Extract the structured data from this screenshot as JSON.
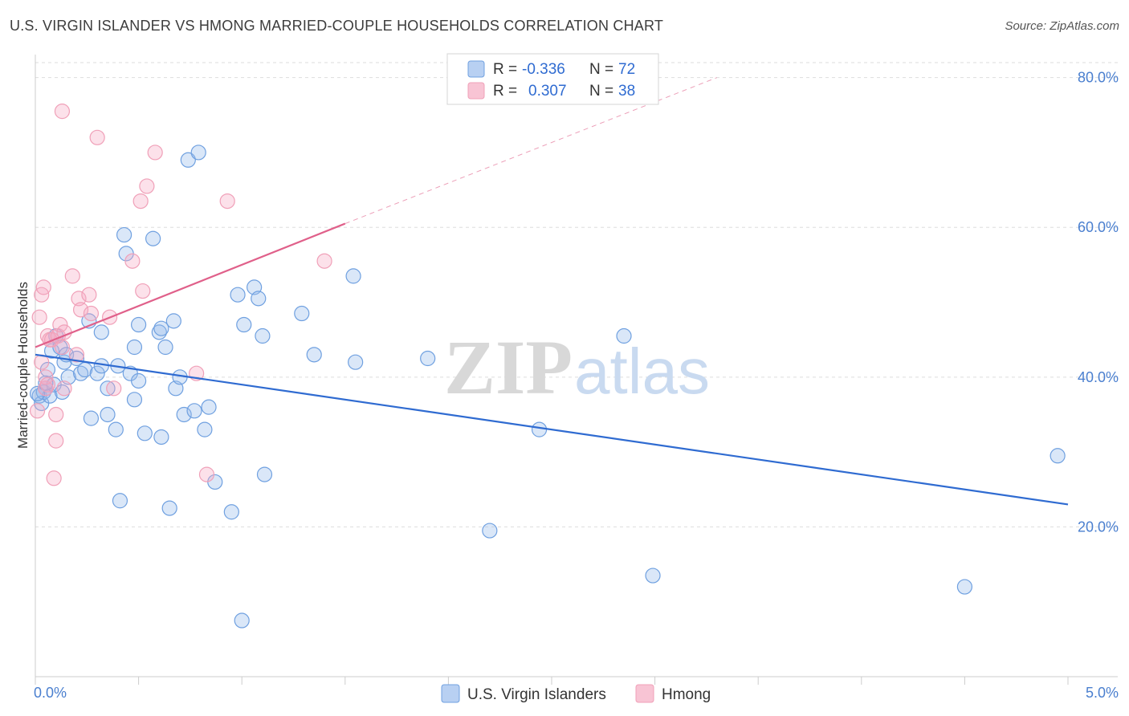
{
  "chart_data": {
    "type": "scatter",
    "title": "U.S. VIRGIN ISLANDER VS HMONG MARRIED-COUPLE HOUSEHOLDS CORRELATION CHART",
    "source": "Source: ZipAtlas.com",
    "xlabel": "",
    "ylabel": "Married-couple Households",
    "xlim": [
      0,
      5
    ],
    "ylim": [
      0,
      82
    ],
    "x_tick_labels": [
      {
        "value": 0,
        "label": "0.0%"
      },
      {
        "value": 5,
        "label": "5.0%"
      }
    ],
    "y_tick_labels": [
      {
        "value": 20,
        "label": "20.0%"
      },
      {
        "value": 40,
        "label": "40.0%"
      },
      {
        "value": 60,
        "label": "60.0%"
      },
      {
        "value": 80,
        "label": "80.0%"
      }
    ],
    "watermark": {
      "part1": "ZIP",
      "part2": "atlas"
    },
    "legend": {
      "rows": [
        {
          "r_label": "R =",
          "r_value": "-0.336",
          "n_label": "N =",
          "n_value": "72"
        },
        {
          "r_label": "R =",
          "r_value": "0.307",
          "n_label": "N =",
          "n_value": "38"
        }
      ]
    },
    "series": [
      {
        "name": "U.S. Virgin Islanders",
        "color": "#6fa0e0",
        "line_color": "#2f6bd1",
        "trend": {
          "x0": 0.0,
          "y0": 43.0,
          "x1": 5.0,
          "y1": 23.0
        },
        "points": [
          [
            0.02,
            37.5
          ],
          [
            0.03,
            36.5
          ],
          [
            0.04,
            38.0
          ],
          [
            0.05,
            38.5
          ],
          [
            0.06,
            41.0
          ],
          [
            0.07,
            37.5
          ],
          [
            0.08,
            43.5
          ],
          [
            0.09,
            39.0
          ],
          [
            0.1,
            45.5
          ],
          [
            0.12,
            44.0
          ],
          [
            0.13,
            38.0
          ],
          [
            0.14,
            42.0
          ],
          [
            0.15,
            43.0
          ],
          [
            0.16,
            40.0
          ],
          [
            0.2,
            42.5
          ],
          [
            0.22,
            40.5
          ],
          [
            0.24,
            41.0
          ],
          [
            0.26,
            47.5
          ],
          [
            0.27,
            34.5
          ],
          [
            0.3,
            40.5
          ],
          [
            0.32,
            41.5
          ],
          [
            0.32,
            46.0
          ],
          [
            0.35,
            38.5
          ],
          [
            0.35,
            35.0
          ],
          [
            0.39,
            33.0
          ],
          [
            0.4,
            41.5
          ],
          [
            0.41,
            23.5
          ],
          [
            0.43,
            59.0
          ],
          [
            0.44,
            56.5
          ],
          [
            0.46,
            40.5
          ],
          [
            0.48,
            44.0
          ],
          [
            0.48,
            37.0
          ],
          [
            0.5,
            47.0
          ],
          [
            0.5,
            39.5
          ],
          [
            0.53,
            32.5
          ],
          [
            0.57,
            58.5
          ],
          [
            0.6,
            46.0
          ],
          [
            0.61,
            46.5
          ],
          [
            0.61,
            32.0
          ],
          [
            0.63,
            44.0
          ],
          [
            0.65,
            22.5
          ],
          [
            0.67,
            47.5
          ],
          [
            0.68,
            38.5
          ],
          [
            0.7,
            40.0
          ],
          [
            0.72,
            35.0
          ],
          [
            0.74,
            69.0
          ],
          [
            0.77,
            35.5
          ],
          [
            0.79,
            70.0
          ],
          [
            0.82,
            33.0
          ],
          [
            0.84,
            36.0
          ],
          [
            0.87,
            26.0
          ],
          [
            0.95,
            22.0
          ],
          [
            0.98,
            51.0
          ],
          [
            1.0,
            7.5
          ],
          [
            1.01,
            47.0
          ],
          [
            1.06,
            52.0
          ],
          [
            1.08,
            50.5
          ],
          [
            1.1,
            45.5
          ],
          [
            1.11,
            27.0
          ],
          [
            1.29,
            48.5
          ],
          [
            1.35,
            43.0
          ],
          [
            1.54,
            53.5
          ],
          [
            1.55,
            42.0
          ],
          [
            1.9,
            42.5
          ],
          [
            2.2,
            19.5
          ],
          [
            2.44,
            33.0
          ],
          [
            2.85,
            45.5
          ],
          [
            2.99,
            13.5
          ],
          [
            4.5,
            12.0
          ],
          [
            4.95,
            29.5
          ],
          [
            0.01,
            37.8
          ],
          [
            0.05,
            39.2
          ]
        ]
      },
      {
        "name": "Hmong",
        "color": "#f0a0b8",
        "line_color": "#e0608a",
        "trend": {
          "x0": 0.0,
          "y0": 44.0,
          "x1": 1.5,
          "y1": 60.5
        },
        "trend_ext": {
          "x0": 1.5,
          "y0": 60.5,
          "x1": 3.3,
          "y1": 80.0
        },
        "points": [
          [
            0.01,
            35.5
          ],
          [
            0.02,
            48.0
          ],
          [
            0.03,
            51.0
          ],
          [
            0.04,
            52.0
          ],
          [
            0.05,
            38.5
          ],
          [
            0.05,
            40.0
          ],
          [
            0.06,
            45.5
          ],
          [
            0.07,
            45.0
          ],
          [
            0.08,
            45.0
          ],
          [
            0.09,
            26.5
          ],
          [
            0.1,
            35.0
          ],
          [
            0.1,
            31.5
          ],
          [
            0.11,
            45.5
          ],
          [
            0.12,
            47.0
          ],
          [
            0.13,
            44.0
          ],
          [
            0.14,
            46.0
          ],
          [
            0.14,
            38.5
          ],
          [
            0.18,
            53.5
          ],
          [
            0.2,
            43.0
          ],
          [
            0.21,
            50.5
          ],
          [
            0.22,
            49.0
          ],
          [
            0.26,
            51.0
          ],
          [
            0.27,
            48.5
          ],
          [
            0.3,
            72.0
          ],
          [
            0.36,
            48.0
          ],
          [
            0.38,
            38.5
          ],
          [
            0.47,
            55.5
          ],
          [
            0.51,
            63.5
          ],
          [
            0.52,
            51.5
          ],
          [
            0.54,
            65.5
          ],
          [
            0.58,
            70.0
          ],
          [
            0.78,
            40.5
          ],
          [
            0.83,
            27.0
          ],
          [
            0.93,
            63.5
          ],
          [
            1.4,
            55.5
          ],
          [
            0.13,
            75.5
          ],
          [
            0.03,
            42.0
          ],
          [
            0.06,
            39.0
          ]
        ]
      }
    ]
  }
}
